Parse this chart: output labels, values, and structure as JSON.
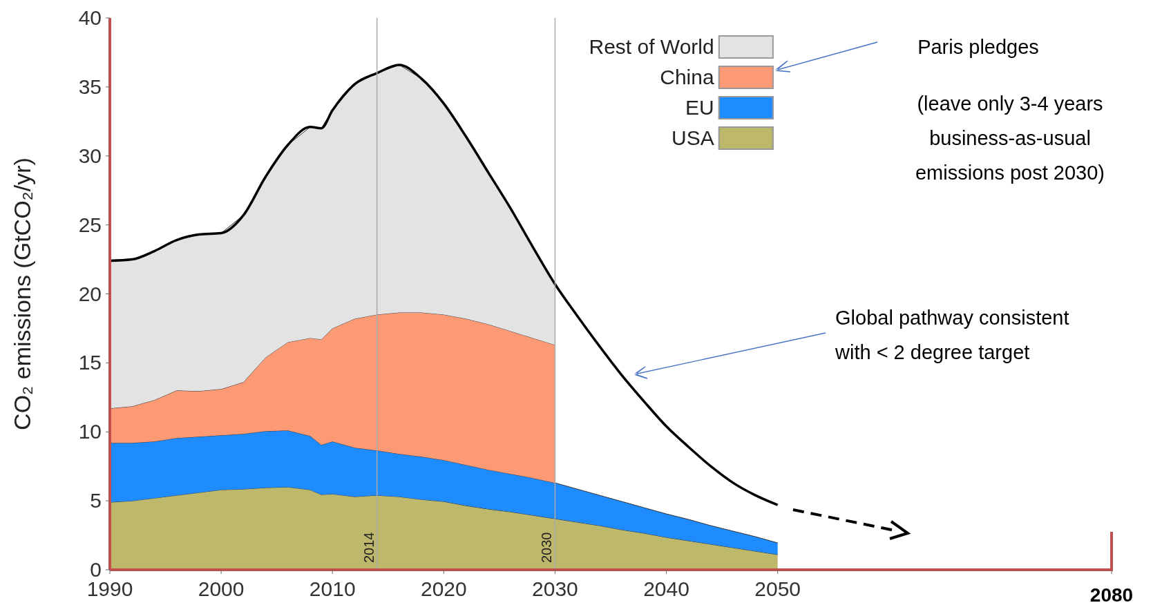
{
  "chart_data": {
    "type": "area",
    "stacked": true,
    "ylabel": "CO₂ emissions (GtCO₂/yr)",
    "x": [
      1990,
      1992,
      1994,
      1996,
      1998,
      2000,
      2002,
      2004,
      2006,
      2008,
      2009,
      2010,
      2012,
      2014,
      2016,
      2018,
      2020,
      2022,
      2024,
      2026,
      2028,
      2030,
      2032,
      2034,
      2036,
      2038,
      2040,
      2042,
      2044,
      2046,
      2048,
      2050
    ],
    "series": [
      {
        "name": "USA",
        "color": "#bdb86b",
        "values": [
          4.9,
          5.0,
          5.2,
          5.4,
          5.6,
          5.8,
          5.85,
          5.95,
          6.0,
          5.8,
          5.45,
          5.5,
          5.3,
          5.4,
          5.3,
          5.1,
          4.95,
          4.65,
          4.4,
          4.2,
          3.95,
          3.7,
          3.45,
          3.2,
          2.9,
          2.65,
          2.35,
          2.1,
          1.85,
          1.6,
          1.35,
          1.1
        ]
      },
      {
        "name": "EU",
        "color": "#1e8cff",
        "values": [
          4.3,
          4.2,
          4.1,
          4.15,
          4.05,
          3.95,
          4.0,
          4.1,
          4.1,
          3.9,
          3.6,
          3.8,
          3.55,
          3.25,
          3.1,
          3.1,
          3.0,
          2.95,
          2.85,
          2.75,
          2.7,
          2.6,
          2.4,
          2.2,
          2.05,
          1.85,
          1.7,
          1.55,
          1.35,
          1.2,
          1.05,
          0.85
        ]
      },
      {
        "name": "China",
        "color": "#fc9a75",
        "values": [
          2.5,
          2.65,
          3.0,
          3.45,
          3.3,
          3.35,
          3.75,
          5.35,
          6.4,
          7.1,
          7.65,
          8.2,
          9.35,
          9.85,
          10.25,
          10.45,
          10.55,
          10.6,
          10.55,
          10.35,
          10.15,
          10.0,
          null,
          null,
          null,
          null,
          null,
          null,
          null,
          null,
          null,
          null
        ]
      },
      {
        "name": "Rest of World",
        "color": "#e3e3e3",
        "values": [
          10.7,
          10.65,
          10.8,
          10.9,
          11.35,
          11.3,
          12.1,
          13.1,
          14.3,
          15.3,
          15.3,
          15.8,
          17.0,
          17.5,
          17.95,
          16.95,
          15.3,
          13.2,
          11.0,
          8.9,
          6.6,
          4.4,
          null,
          null,
          null,
          null,
          null,
          null,
          null,
          null,
          null,
          null
        ]
      },
      {
        "type": "line",
        "color": "#000000",
        "values": [
          22.4,
          22.5,
          23.1,
          23.9,
          24.3,
          24.4,
          25.7,
          28.5,
          30.8,
          32.1,
          32.0,
          33.3,
          35.2,
          36.0,
          36.6,
          35.6,
          33.8,
          31.4,
          28.8,
          26.2,
          23.4,
          20.7,
          18.4,
          16.2,
          14.1,
          12.2,
          10.4,
          8.9,
          7.5,
          6.3,
          5.4,
          4.7
        ]
      }
    ],
    "xlim": [
      1990,
      2080
    ],
    "xticks": [
      1990,
      2000,
      2010,
      2020,
      2030,
      2040,
      2050,
      2080
    ],
    "ylim": [
      0,
      40
    ],
    "yticks": [
      0,
      5,
      10,
      15,
      20,
      25,
      30,
      35,
      40
    ],
    "ref_lines": [
      {
        "axis": "x",
        "value": 2014,
        "label": "2014",
        "color": "#aaaaaa"
      },
      {
        "axis": "x",
        "value": 2030,
        "label": "2030",
        "color": "#aaaaaa"
      }
    ],
    "annotations": [
      "Paris pledges",
      "(leave only 3-4 years business-as-usual emissions post 2030)",
      "Global pathway consistent with < 2 degree target"
    ],
    "legend": "top right"
  }
}
